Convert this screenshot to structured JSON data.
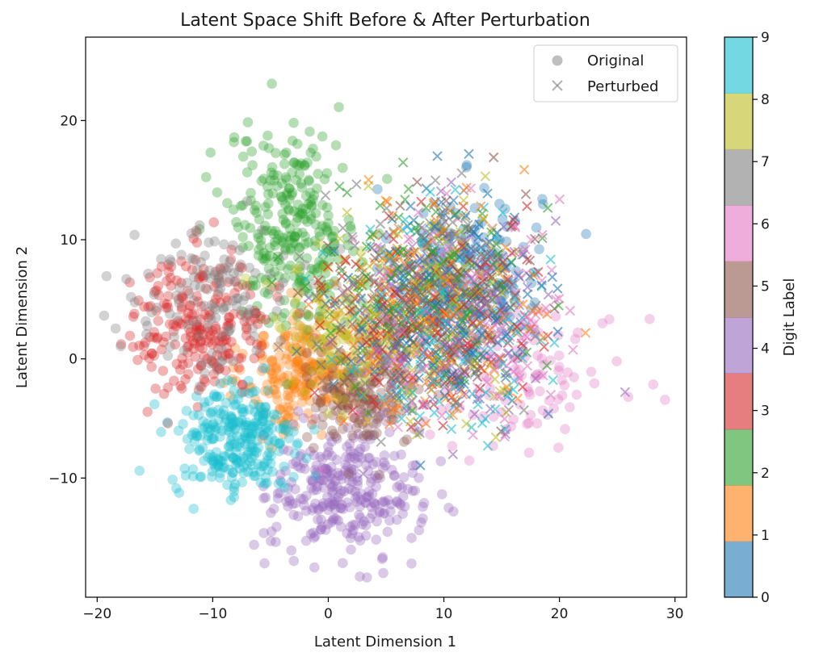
{
  "chart_data": {
    "type": "scatter",
    "title": "Latent Space Shift Before & After Perturbation",
    "xlabel": "Latent Dimension 1",
    "ylabel": "Latent Dimension 2",
    "xlim": [
      -21,
      31
    ],
    "ylim": [
      -20,
      27
    ],
    "xticks": [
      -20,
      -10,
      0,
      10,
      20,
      30
    ],
    "xtick_labels": [
      "−20",
      "−10",
      "0",
      "10",
      "20",
      "30"
    ],
    "yticks": [
      -10,
      0,
      10,
      20
    ],
    "ytick_labels": [
      "−10",
      "0",
      "10",
      "20"
    ],
    "grid": false,
    "legend": {
      "position": "top-right",
      "entries": [
        {
          "label": "Original",
          "marker": "circle"
        },
        {
          "label": "Perturbed",
          "marker": "x"
        }
      ]
    },
    "colorbar": {
      "label": "Digit Label",
      "ticks": [
        "0",
        "1",
        "2",
        "3",
        "4",
        "5",
        "6",
        "7",
        "8",
        "9"
      ],
      "colors": [
        "#1f77b4",
        "#ff7f0e",
        "#2ca02c",
        "#d62728",
        "#9467bd",
        "#8c564b",
        "#e377c2",
        "#7f7f7f",
        "#bcbd22",
        "#17becf"
      ]
    },
    "series": [
      {
        "name": "Original",
        "marker": "circle",
        "clusters": [
          {
            "digit": 0,
            "center": [
              12,
              8
            ],
            "spread": [
              3.2,
              3.2
            ],
            "count": 150
          },
          {
            "digit": 1,
            "center": [
              -2,
              -1
            ],
            "spread": [
              2.5,
              2.5
            ],
            "count": 240
          },
          {
            "digit": 2,
            "center": [
              -3,
              11
            ],
            "spread": [
              2.8,
              4.0
            ],
            "count": 280
          },
          {
            "digit": 3,
            "center": [
              -11,
              3
            ],
            "spread": [
              3.0,
              3.0
            ],
            "count": 240
          },
          {
            "digit": 4,
            "center": [
              1.5,
              -11
            ],
            "spread": [
              3.2,
              2.7
            ],
            "count": 300
          },
          {
            "digit": 5,
            "center": [
              3,
              -3
            ],
            "spread": [
              2.5,
              2.2
            ],
            "count": 180
          },
          {
            "digit": 6,
            "center": [
              17,
              -1
            ],
            "spread": [
              4.5,
              3.0
            ],
            "count": 110
          },
          {
            "digit": 7,
            "center": [
              -10,
              5
            ],
            "spread": [
              3.5,
              3.0
            ],
            "count": 130
          },
          {
            "digit": 8,
            "center": [
              1,
              2
            ],
            "spread": [
              3.0,
              3.0
            ],
            "count": 130
          },
          {
            "digit": 9,
            "center": [
              -8,
              -7
            ],
            "spread": [
              2.6,
              2.4
            ],
            "count": 280
          }
        ]
      },
      {
        "name": "Perturbed",
        "marker": "x",
        "clusters": [
          {
            "digit": 0,
            "center": [
              10,
              5
            ],
            "spread": [
              4.2,
              4.3
            ],
            "count": 190
          },
          {
            "digit": 1,
            "center": [
              9,
              4
            ],
            "spread": [
              4.2,
              4.3
            ],
            "count": 190
          },
          {
            "digit": 2,
            "center": [
              9,
              6
            ],
            "spread": [
              4.2,
              4.3
            ],
            "count": 160
          },
          {
            "digit": 3,
            "center": [
              8,
              4
            ],
            "spread": [
              4.2,
              4.3
            ],
            "count": 150
          },
          {
            "digit": 4,
            "center": [
              10,
              3
            ],
            "spread": [
              4.2,
              4.3
            ],
            "count": 150
          },
          {
            "digit": 5,
            "center": [
              9,
              4
            ],
            "spread": [
              4.2,
              4.3
            ],
            "count": 140
          },
          {
            "digit": 6,
            "center": [
              11,
              4
            ],
            "spread": [
              4.5,
              4.3
            ],
            "count": 170
          },
          {
            "digit": 7,
            "center": [
              8,
              5
            ],
            "spread": [
              4.2,
              4.3
            ],
            "count": 120
          },
          {
            "digit": 8,
            "center": [
              9,
              4
            ],
            "spread": [
              4.2,
              4.3
            ],
            "count": 150
          },
          {
            "digit": 9,
            "center": [
              10,
              3
            ],
            "spread": [
              4.2,
              4.3
            ],
            "count": 160
          }
        ]
      }
    ]
  }
}
